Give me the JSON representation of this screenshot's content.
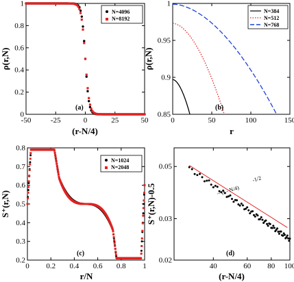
{
  "chart_data": [
    {
      "type": "scatter",
      "panel_label": "(a)",
      "xlabel": "(r-N/4)",
      "ylabel": "ρ(r,N)",
      "xlim": [
        -50,
        50
      ],
      "ylim": [
        0,
        1
      ],
      "xticks": [
        "-50",
        "-25",
        "0",
        "25",
        "50"
      ],
      "yticks": [
        "0",
        "0.2",
        "0.4",
        "0.6",
        "0.8",
        "1"
      ],
      "legend": {
        "position": "top-right"
      },
      "series": [
        {
          "name": "N=4096",
          "color": "#000000",
          "width": 1.5
        },
        {
          "name": "N=8192",
          "color": "#e32222",
          "width": 1.7
        }
      ]
    },
    {
      "type": "line",
      "panel_label": "(b)",
      "xlabel": "r",
      "ylabel": "ρ(r,N)",
      "xlim": [
        0,
        150
      ],
      "ylim": [
        0.85,
        1
      ],
      "xticks": [
        "0",
        "50",
        "100",
        "150"
      ],
      "yticks": [
        "0.85",
        "0.9",
        "0.95",
        "1"
      ],
      "legend": {
        "position": "top-right"
      },
      "series": [
        {
          "name": "N=384",
          "color": "#000000",
          "dash": "solid",
          "x0": 0,
          "y0": 0.897,
          "x1": 22,
          "y1": 0.85
        },
        {
          "name": "N=512",
          "color": "#e32222",
          "dash": "dotted",
          "x0": 0,
          "y0": 0.973,
          "x1": 66,
          "y1": 0.85
        },
        {
          "name": "N=768",
          "color": "#1f3fdc",
          "dash": "dashed",
          "x0": 0,
          "y0": 0.999,
          "x1": 133,
          "y1": 0.85
        }
      ]
    },
    {
      "type": "scatter",
      "panel_label": "(c)",
      "xlabel": "r/N",
      "ylabel": "S⁺(r,N)",
      "xlim": [
        0,
        1
      ],
      "ylim": [
        0.2,
        0.8
      ],
      "xticks": [
        "0",
        "0.2",
        "0.4",
        "0.6",
        "0.8",
        "1"
      ],
      "yticks": [
        "0.2",
        "0.3",
        "0.4",
        "0.5",
        "0.6",
        "0.7",
        "0.8"
      ],
      "legend": {
        "position": "top-right"
      },
      "series": [
        {
          "name": "N=1024",
          "color": "#000000"
        },
        {
          "name": "N=2048",
          "color": "#e32222"
        }
      ]
    },
    {
      "type": "scatter",
      "panel_label": "(d)",
      "xlabel": "(r-N/4)",
      "ylabel": "S⁺(r,N)-0.5",
      "xlim": [
        25,
        100
      ],
      "ylim": [
        0.02,
        0.06
      ],
      "yscale": "log",
      "xscale": "log",
      "xticks": [
        "40",
        "60",
        "80",
        "100"
      ],
      "yticks": [
        "0.02",
        "0.03",
        "0.05"
      ],
      "annotation": "~ (r - N/4)",
      "annotation_exp": "-1/2",
      "fit_line": {
        "color": "#e32222",
        "x0": 30,
        "y0": 0.0505,
        "x1": 97,
        "y1": 0.0275
      },
      "points": {
        "color": "#000000",
        "x0": 30,
        "y0": 0.049,
        "x1": 100,
        "y1": 0.0245
      }
    }
  ]
}
